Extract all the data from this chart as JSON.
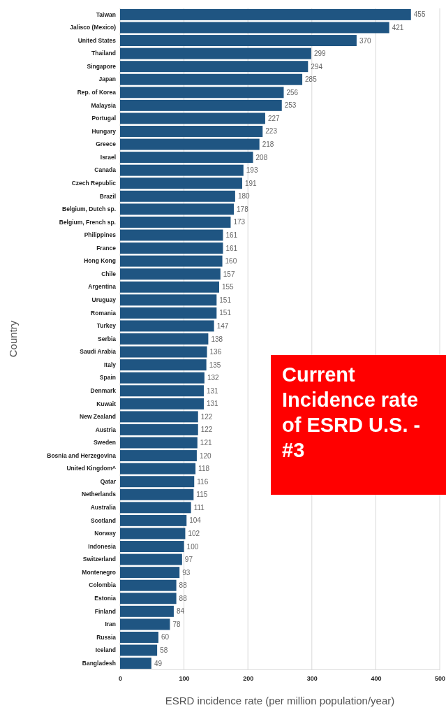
{
  "chart_data": {
    "type": "bar",
    "orientation": "horizontal",
    "xlabel": "ESRD incidence rate (per million population/year)",
    "ylabel": "Country",
    "categories": [
      "Taiwan",
      "Jalisco (Mexico)",
      "United States",
      "Thailand",
      "Singapore",
      "Japan",
      "Rep. of Korea",
      "Malaysia",
      "Portugal",
      "Hungary",
      "Greece",
      "Israel",
      "Canada",
      "Czech Republic",
      "Brazil",
      "Belgium, Dutch sp.",
      "Belgium, French sp.",
      "Philippines",
      "France",
      "Hong Kong",
      "Chile",
      "Argentina",
      "Uruguay",
      "Romania",
      "Turkey",
      "Serbia",
      "Saudi Arabia",
      "Italy",
      "Spain",
      "Denmark",
      "Kuwait",
      "New Zealand",
      "Austria",
      "Sweden",
      "Bosnia and Herzegovina",
      "United Kingdom^",
      "Qatar",
      "Netherlands",
      "Australia",
      "Scotland",
      "Norway",
      "Indonesia",
      "Switzerland",
      "Montenegro",
      "Colombia",
      "Estonia",
      "Finland",
      "Iran",
      "Russia",
      "Iceland",
      "Bangladesh"
    ],
    "values": [
      455,
      421,
      370,
      299,
      294,
      285,
      256,
      253,
      227,
      223,
      218,
      208,
      193,
      191,
      180,
      178,
      173,
      161,
      161,
      160,
      157,
      155,
      151,
      151,
      147,
      138,
      136,
      135,
      132,
      131,
      131,
      122,
      122,
      121,
      120,
      118,
      116,
      115,
      111,
      104,
      102,
      100,
      97,
      93,
      88,
      88,
      84,
      78,
      60,
      58,
      49
    ],
    "color": "#1f5582",
    "xlim": [
      0,
      500
    ],
    "xticks": [
      0,
      100,
      200,
      300,
      400,
      500
    ],
    "grid": "x",
    "data_labels": true,
    "annotations": [
      "Current Incidence rate of ESRD U.S. - #3"
    ]
  }
}
